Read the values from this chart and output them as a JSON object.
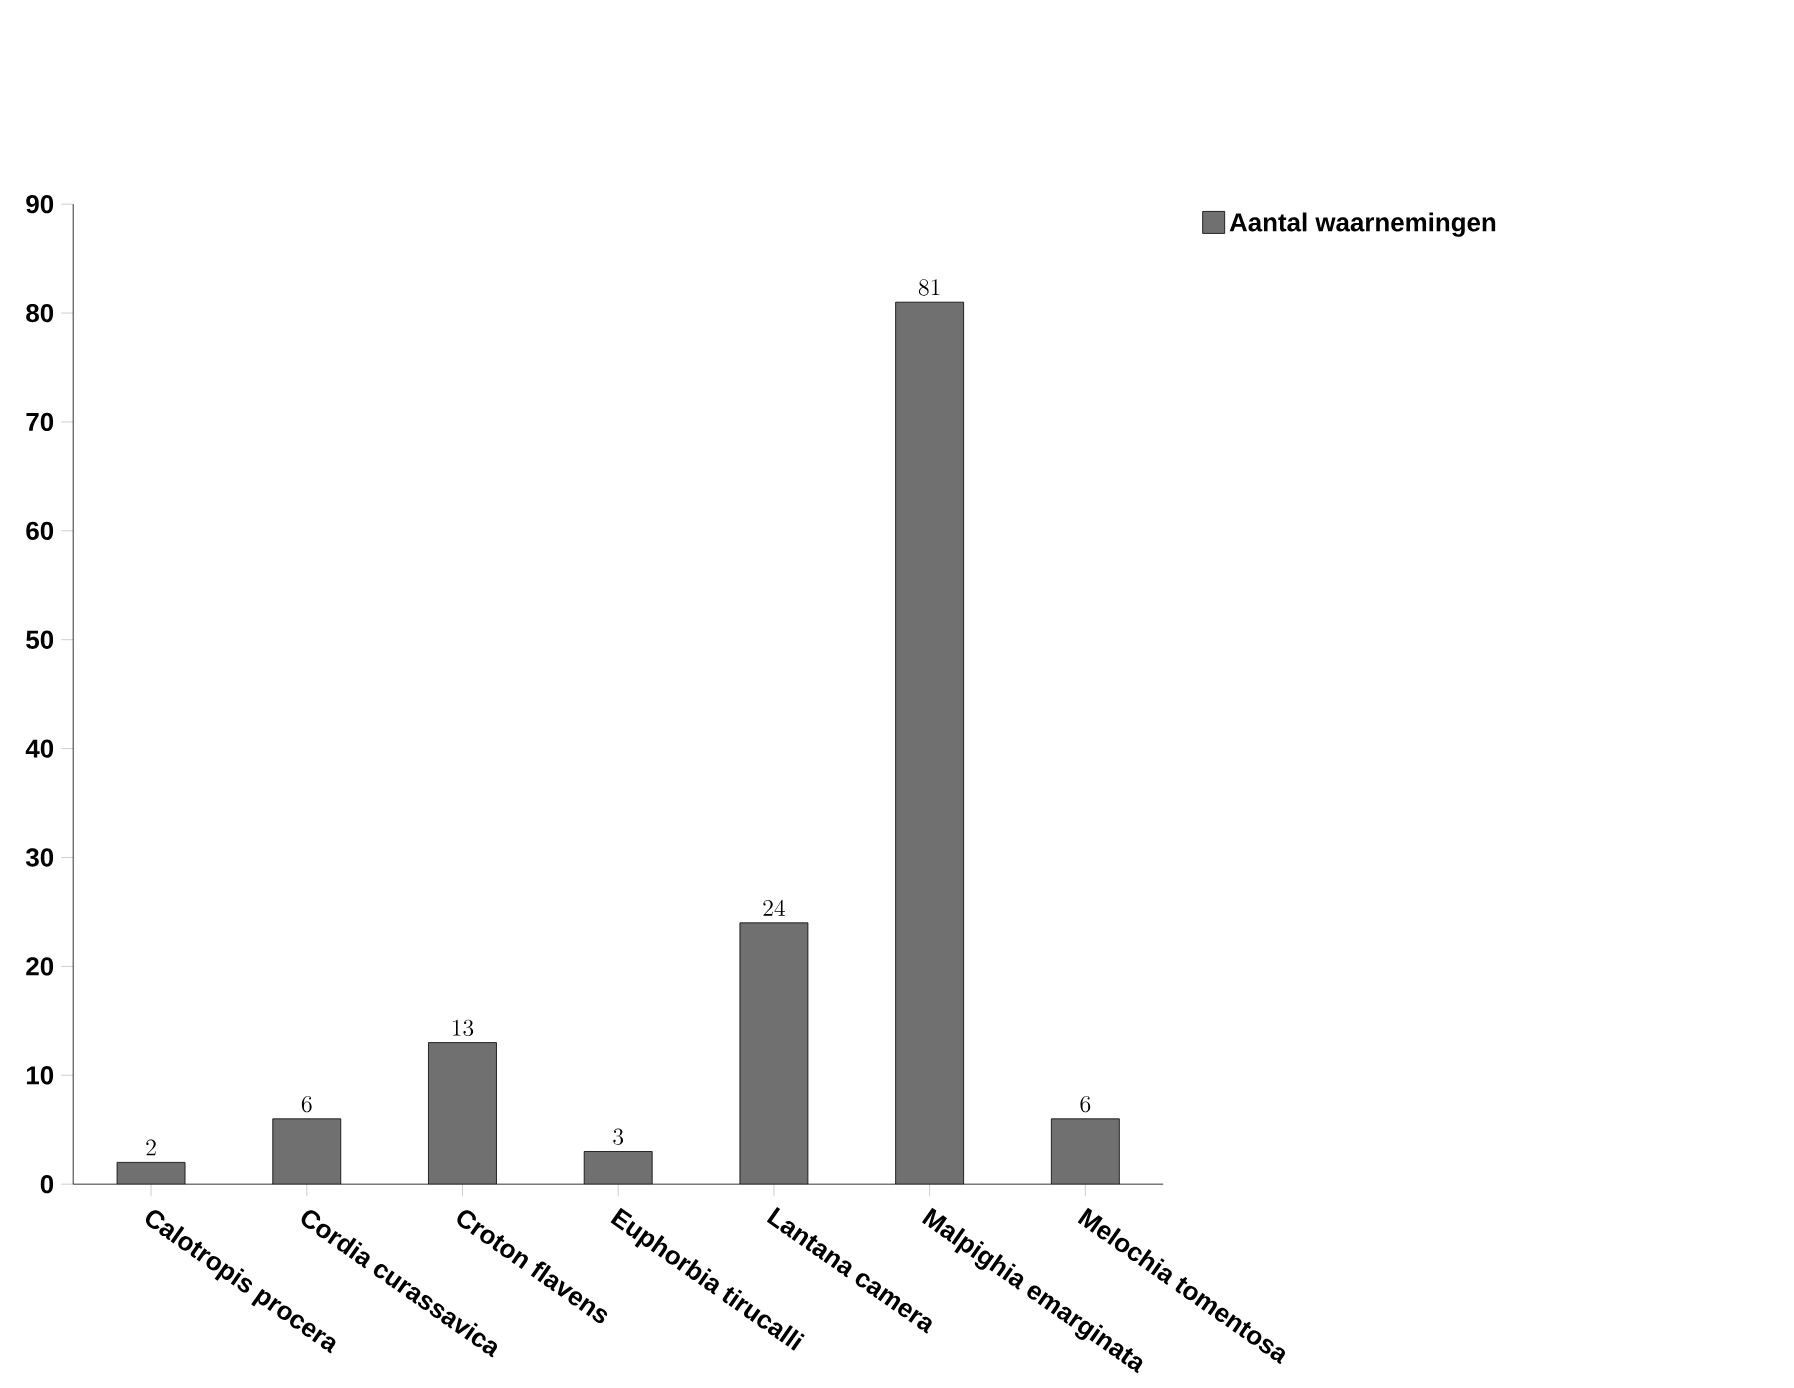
{
  "chart_data": {
    "type": "bar",
    "categories": [
      "Calotropis procera",
      "Cordia curassavica",
      "Croton flavens",
      "Euphorbia tirucalli",
      "Lantana camera",
      "Malpighia emarginata",
      "Melochia tomentosa"
    ],
    "series": [
      {
        "name": "Aantal waarnemingen",
        "color": "#707070",
        "values": [
          2,
          6,
          13,
          3,
          24,
          81,
          6
        ]
      }
    ],
    "ylim": [
      0,
      90
    ],
    "yticks": [
      0,
      10,
      20,
      30,
      40,
      50,
      60,
      70,
      80,
      90
    ],
    "data_labels": true,
    "legend": "top right",
    "grid": false
  }
}
